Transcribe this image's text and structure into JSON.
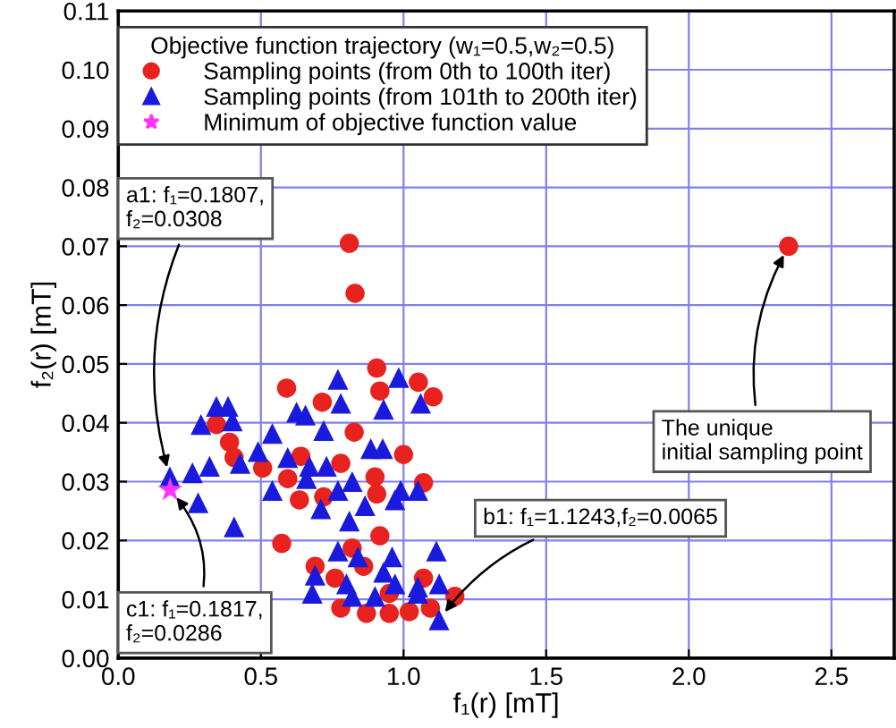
{
  "chart_data": {
    "type": "scatter",
    "xlabel": "f₁(r) [mT]",
    "ylabel": "f₂(r) [mT]",
    "legend_title": "Objective function trajectory (w₁=0.5,w₂=0.5)",
    "xlim": [
      0,
      2.72
    ],
    "ylim": [
      0,
      0.11
    ],
    "xticks": [
      {
        "value": 0,
        "label": "0.0"
      },
      {
        "value": 0.5,
        "label": "0.5"
      },
      {
        "value": 1.0,
        "label": "1.0"
      },
      {
        "value": 1.5,
        "label": "1.5"
      },
      {
        "value": 2.0,
        "label": "2.0"
      },
      {
        "value": 2.5,
        "label": "2.5"
      }
    ],
    "yticks": [
      {
        "value": 0,
        "label": "0.00"
      },
      0.01,
      0.02,
      0.03,
      0.04,
      0.05,
      0.06,
      0.07,
      0.08,
      0.09,
      {
        "value": 0.1,
        "label": "0.10"
      },
      0.11
    ],
    "grid": true,
    "legend": "top left",
    "series": [
      {
        "name": "Sampling points (from 0th to 100th iter)",
        "color": "#e8221e",
        "marker": "circle",
        "x": [
          2.35,
          0.81,
          0.83,
          0.906,
          0.59,
          0.715,
          0.917,
          1.052,
          1.104,
          0.827,
          0.39,
          0.64,
          1.0,
          0.78,
          0.9,
          1.07,
          0.506,
          0.594,
          0.635,
          0.72,
          0.906,
          0.573,
          0.917,
          0.69,
          0.82,
          0.86,
          0.78,
          0.87,
          0.95,
          1.02,
          1.094,
          1.18,
          1.07,
          0.76,
          0.406,
          0.344,
          0.95
        ],
        "values": [
          0.07,
          0.0705,
          0.062,
          0.0493,
          0.0459,
          0.0435,
          0.0454,
          0.0469,
          0.0444,
          0.0384,
          0.0367,
          0.0343,
          0.0346,
          0.0331,
          0.0308,
          0.0298,
          0.0323,
          0.0305,
          0.0269,
          0.0274,
          0.0279,
          0.0195,
          0.0208,
          0.0156,
          0.0187,
          0.0156,
          0.0085,
          0.0076,
          0.0076,
          0.0079,
          0.0085,
          0.0105,
          0.0136,
          0.0136,
          0.0341,
          0.0397,
          0.011
        ]
      },
      {
        "name": "Sampling points (from 101th to 200th iter)",
        "color": "#1a1adf",
        "marker": "triangle",
        "x": [
          0.77,
          0.983,
          0.625,
          0.78,
          1.06,
          0.93,
          0.344,
          0.385,
          0.29,
          0.4,
          0.54,
          0.72,
          0.656,
          0.885,
          0.927,
          0.427,
          0.49,
          0.594,
          0.67,
          0.73,
          0.1807,
          0.26,
          0.32,
          0.54,
          0.66,
          0.77,
          0.82,
          0.99,
          1.05,
          0.97,
          0.28,
          0.71,
          0.81,
          0.406,
          0.865,
          0.77,
          0.96,
          1.115,
          0.84,
          0.69,
          0.8,
          0.93,
          0.97,
          1.05,
          1.125,
          1.1243,
          0.82,
          0.68,
          0.9,
          1.05
        ],
        "values": [
          0.0474,
          0.0477,
          0.0418,
          0.0433,
          0.0433,
          0.0423,
          0.0428,
          0.0428,
          0.0397,
          0.0403,
          0.0382,
          0.0387,
          0.0413,
          0.0356,
          0.0356,
          0.0331,
          0.0351,
          0.0341,
          0.0326,
          0.0326,
          0.0308,
          0.0315,
          0.0326,
          0.0285,
          0.0305,
          0.0285,
          0.03,
          0.0285,
          0.0285,
          0.0269,
          0.0264,
          0.0254,
          0.0233,
          0.0223,
          0.0259,
          0.0182,
          0.0172,
          0.0182,
          0.0172,
          0.0141,
          0.0126,
          0.0146,
          0.0126,
          0.0121,
          0.0126,
          0.0065,
          0.0105,
          0.011,
          0.0105,
          0.011
        ]
      },
      {
        "name": "Minimum of objective function value",
        "color": "#ff33ff",
        "marker": "star",
        "x": [
          0.1817
        ],
        "values": [
          0.0286
        ]
      }
    ],
    "annotations": [
      {
        "text": "a1: f₁=0.1807,\nf₂=0.0308",
        "x": 0.1807,
        "y": 0.0308
      },
      {
        "text": "c1: f₁=0.1817,\nf₂=0.0286",
        "x": 0.1817,
        "y": 0.0286
      },
      {
        "text": "b1: f₁=1.1243,f₂=0.0065",
        "x": 1.1243,
        "y": 0.0065
      },
      {
        "text": "The unique\ninitial sampling point",
        "x": 2.35,
        "y": 0.07
      }
    ]
  }
}
